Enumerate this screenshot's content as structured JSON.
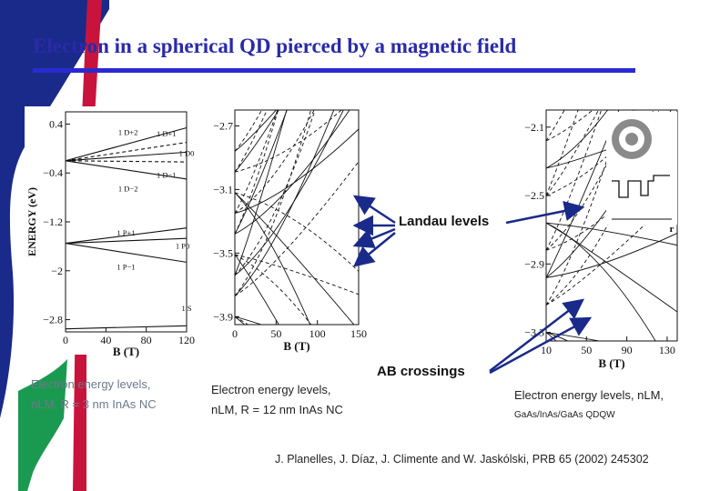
{
  "slide": {
    "title": "Electron in a spherical QD pierced by a magnetic field",
    "annotations": {
      "landau": "Landau levels",
      "ab": "AB crossings"
    },
    "reference": "J. Planelles, J. Díaz, J. Climente and W. Jaskólski, PRB 65 (2002) 245302",
    "colors": {
      "title": "#2a2aa8",
      "rule": "#2a2ad0",
      "arrow": "#1a2a8a",
      "bg_blue": "#1a2a8a",
      "bg_red": "#c8143c",
      "bg_green": "#1a9a50"
    }
  },
  "panels": [
    {
      "caption_lines": [
        "Electron energy levels,",
        "nLM, R = 3 nm InAs NC"
      ],
      "chart_data": {
        "type": "line",
        "xlabel": "B (T)",
        "ylabel": "ENERGY (eV)",
        "xticks": [
          "0",
          "40",
          "80",
          "120"
        ],
        "yticks": [
          "0.4",
          "−0.4",
          "−1.2",
          "−2",
          "−2.8"
        ],
        "xlim": [
          0,
          120
        ],
        "ylim": [
          -3.0,
          0.6
        ],
        "level_labels": [
          "1 D+2",
          "1 D+1",
          "1 D0",
          "1 D−1",
          "1 D−2",
          "1 P+1",
          "1 P0",
          "1 P−1",
          "1 S"
        ],
        "series": [
          {
            "label": "1 D+2",
            "x": [
              0,
              120
            ],
            "y": [
              -0.2,
              0.34
            ]
          },
          {
            "label": "1 D+1",
            "x": [
              0,
              120
            ],
            "y": [
              -0.2,
              0.1
            ]
          },
          {
            "label": "1 D0",
            "x": [
              0,
              120
            ],
            "y": [
              -0.2,
              -0.06
            ]
          },
          {
            "label": "1 D−1",
            "x": [
              0,
              120
            ],
            "y": [
              -0.2,
              -0.22
            ]
          },
          {
            "label": "1 D−2",
            "x": [
              0,
              120
            ],
            "y": [
              -0.2,
              -0.5
            ]
          },
          {
            "label": "1 P+1",
            "x": [
              0,
              120
            ],
            "y": [
              -1.55,
              -1.3
            ]
          },
          {
            "label": "1 P0",
            "x": [
              0,
              120
            ],
            "y": [
              -1.55,
              -1.47
            ]
          },
          {
            "label": "1 P−1",
            "x": [
              0,
              120
            ],
            "y": [
              -1.55,
              -1.86
            ]
          },
          {
            "label": "1 S",
            "x": [
              0,
              120
            ],
            "y": [
              -2.95,
              -2.9
            ]
          }
        ]
      }
    },
    {
      "caption_lines": [
        "Electron energy levels,",
        "nLM, R = 12 nm InAs NC"
      ],
      "chart_data": {
        "type": "line",
        "xlabel": "B (T)",
        "xticks": [
          "0",
          "50",
          "100",
          "150"
        ],
        "yticks": [
          "−2.7",
          "−3.1",
          "−3.5",
          "−3.9"
        ],
        "xlim": [
          0,
          150
        ],
        "ylim": [
          -3.95,
          -2.6
        ]
      }
    },
    {
      "caption_lines": [
        "Electron energy levels, nLM,",
        "GaAs/InAs/GaAs QDQW"
      ],
      "chart_data": {
        "type": "line",
        "xlabel": "B (T)",
        "xticks": [
          "10",
          "50",
          "90",
          "130"
        ],
        "yticks": [
          "−2.1",
          "−2.5",
          "−2.9",
          "−3.3"
        ],
        "xlim": [
          10,
          140
        ],
        "ylim": [
          -3.35,
          -2.0
        ],
        "inset_axis_label": "r"
      }
    }
  ]
}
